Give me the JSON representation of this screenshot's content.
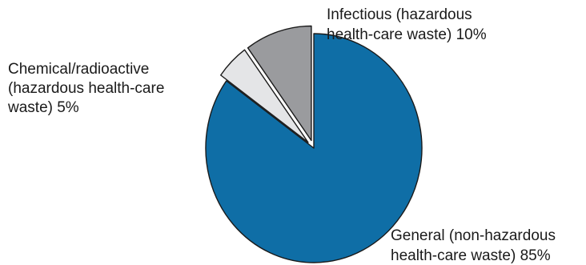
{
  "chart_data": {
    "type": "pie",
    "slices": [
      {
        "label_lines": [
          "General (non-hazardous",
          "health-care waste) 85%"
        ],
        "value": 85,
        "color": "#0f6ea6",
        "exploded": false
      },
      {
        "label_lines": [
          "Chemical/radioactive",
          "(hazardous health-care",
          "waste) 5%"
        ],
        "value": 5,
        "color": "#e4e5e7",
        "exploded": true
      },
      {
        "label_lines": [
          "Infectious (hazardous",
          "health-care waste) 10%"
        ],
        "value": 10,
        "color": "#9a9b9e",
        "exploded": true
      }
    ]
  }
}
